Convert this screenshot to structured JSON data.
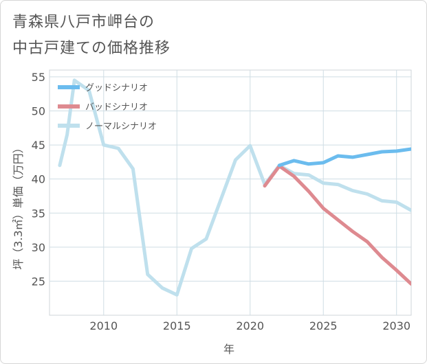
{
  "title": {
    "line1": "青森県八戸市岬台の",
    "line2": "中古戸建ての価格推移"
  },
  "chart_data": {
    "type": "line",
    "xlabel": "年",
    "ylabel": "坪（3.3㎡）単価（万円）",
    "xlim": [
      2006.3,
      2031
    ],
    "ylim": [
      20,
      56
    ],
    "xticks": [
      2010,
      2015,
      2020,
      2025,
      2030
    ],
    "yticks": [
      25,
      30,
      35,
      40,
      45,
      50,
      55
    ],
    "grid": true,
    "legend_position": "top-left",
    "series": [
      {
        "name": "グッドシナリオ",
        "color": "#6bbcee",
        "x": [
          2022,
          2023,
          2024,
          2025,
          2026,
          2027,
          2028,
          2029,
          2030,
          2031
        ],
        "values": [
          42.0,
          42.7,
          42.2,
          42.4,
          43.4,
          43.2,
          43.6,
          44.0,
          44.1,
          44.4
        ]
      },
      {
        "name": "バッドシナリオ",
        "color": "#de8a90",
        "x": [
          2021,
          2022,
          2023,
          2024,
          2025,
          2026,
          2027,
          2028,
          2029,
          2030,
          2031
        ],
        "values": [
          39.0,
          41.9,
          40.4,
          38.2,
          35.7,
          34.0,
          32.3,
          30.8,
          28.5,
          26.6,
          24.6
        ]
      },
      {
        "name": "ノーマルシナリオ",
        "color": "#bfe0ed",
        "x": [
          2007,
          2007.5,
          2008,
          2009,
          2010,
          2011,
          2012,
          2013,
          2014,
          2015,
          2016,
          2017,
          2018,
          2019,
          2020,
          2021,
          2022,
          2023,
          2024,
          2025,
          2026,
          2027,
          2028,
          2029,
          2030,
          2031
        ],
        "values": [
          42.0,
          46.5,
          54.5,
          53.0,
          45.0,
          44.5,
          41.5,
          26.0,
          24.0,
          23.0,
          29.8,
          31.2,
          37.0,
          42.8,
          44.9,
          39.2,
          42.0,
          40.8,
          40.6,
          39.4,
          39.2,
          38.3,
          37.8,
          36.8,
          36.6,
          35.4
        ]
      }
    ]
  }
}
